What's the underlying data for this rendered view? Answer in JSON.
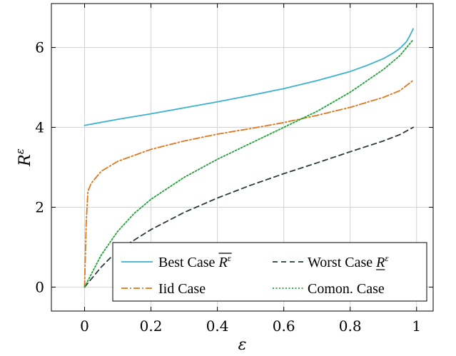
{
  "chart_data": {
    "type": "line",
    "title": "",
    "xlabel": "ε",
    "ylabel": "R^ε",
    "xlim": [
      -0.1,
      1.05
    ],
    "ylim": [
      -0.6,
      7.1
    ],
    "xticks": [
      0,
      0.2,
      0.4,
      0.6,
      0.8,
      1
    ],
    "xtick_labels": [
      "0",
      "0.2",
      "0.4",
      "0.6",
      "0.8",
      "1"
    ],
    "yticks": [
      0,
      2,
      4,
      6
    ],
    "ytick_labels": [
      "0",
      "2",
      "4",
      "6"
    ],
    "grid": true,
    "legend_position": "bottom-right",
    "series": [
      {
        "name": "Best Case R̄^ε",
        "legend_text": "Best Case",
        "legend_math": "overline",
        "color": "#3bb1cc",
        "dash": "solid",
        "x": [
          0.0,
          0.1,
          0.2,
          0.3,
          0.4,
          0.5,
          0.6,
          0.7,
          0.8,
          0.85,
          0.9,
          0.93,
          0.95,
          0.97,
          0.98,
          0.99
        ],
        "y": [
          4.05,
          4.2,
          4.34,
          4.49,
          4.64,
          4.8,
          4.97,
          5.17,
          5.4,
          5.55,
          5.72,
          5.86,
          5.98,
          6.15,
          6.3,
          6.47
        ]
      },
      {
        "name": "Worst Case R̲^ε",
        "legend_text": "Worst Case",
        "legend_math": "underline",
        "color": "#2b3a3a",
        "dash": "dashed",
        "x": [
          0.0,
          0.05,
          0.1,
          0.2,
          0.3,
          0.4,
          0.5,
          0.6,
          0.7,
          0.8,
          0.9,
          0.95,
          0.99
        ],
        "y": [
          0.0,
          0.5,
          0.92,
          1.44,
          1.87,
          2.23,
          2.55,
          2.84,
          3.11,
          3.39,
          3.66,
          3.82,
          4.0
        ]
      },
      {
        "name": "Iid Case",
        "legend_text": "Iid Case",
        "legend_math": "",
        "color": "#e0761e",
        "dash": "dashdot",
        "x": [
          0.0,
          0.005,
          0.01,
          0.02,
          0.05,
          0.1,
          0.2,
          0.3,
          0.4,
          0.5,
          0.6,
          0.7,
          0.8,
          0.9,
          0.95,
          0.99
        ],
        "y": [
          0.0,
          1.6,
          2.4,
          2.6,
          2.9,
          3.15,
          3.45,
          3.66,
          3.83,
          3.97,
          4.12,
          4.3,
          4.5,
          4.75,
          4.92,
          5.18
        ]
      },
      {
        "name": "Comon. Case",
        "legend_text": "Comon. Case",
        "legend_math": "",
        "color": "#22a33a",
        "dash": "dotted",
        "x": [
          0.0,
          0.05,
          0.1,
          0.15,
          0.2,
          0.3,
          0.4,
          0.5,
          0.6,
          0.7,
          0.8,
          0.9,
          0.95,
          0.99
        ],
        "y": [
          0.0,
          0.8,
          1.4,
          1.85,
          2.2,
          2.75,
          3.2,
          3.6,
          4.0,
          4.4,
          4.88,
          5.45,
          5.8,
          6.2
        ]
      }
    ]
  }
}
